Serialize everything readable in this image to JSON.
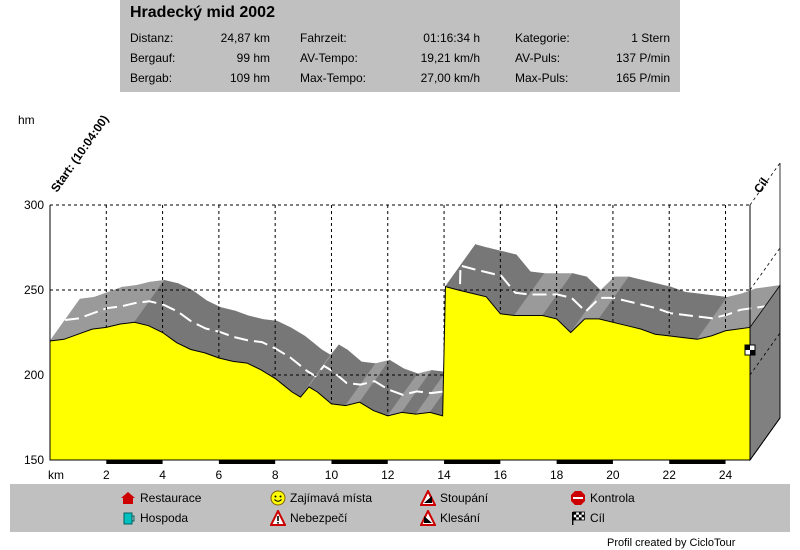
{
  "info": {
    "title": "Hradecký mid 2002",
    "rows": [
      [
        {
          "label": "Distanz:",
          "value": "24,87 km"
        },
        {
          "label": "Fahrzeit:",
          "value": "01:16:34 h"
        },
        {
          "label": "Kategorie:",
          "value": "1 Stern"
        }
      ],
      [
        {
          "label": "Bergauf:",
          "value": "99 hm"
        },
        {
          "label": "AV-Tempo:",
          "value": "19,21 km/h"
        },
        {
          "label": "AV-Puls:",
          "value": "137 P/min"
        }
      ],
      [
        {
          "label": "Bergab:",
          "value": "109 hm"
        },
        {
          "label": "Max-Tempo:",
          "value": "27,00 km/h"
        },
        {
          "label": "Max-Puls:",
          "value": "165 P/min"
        }
      ]
    ]
  },
  "chart_data": {
    "type": "area",
    "xlabel": "km",
    "ylabel": "hm",
    "xlim": [
      0,
      24.87
    ],
    "ylim": [
      150,
      300
    ],
    "grid": true,
    "x_ticks": [
      2,
      4,
      6,
      8,
      10,
      12,
      14,
      16,
      18,
      20,
      22,
      24
    ],
    "y_ticks": [
      150,
      200,
      250,
      300
    ],
    "start_label": "Start: (10:04:00)",
    "end_label": "Cíl",
    "fill_color": "#ffff00",
    "x": [
      0,
      0.5,
      1.0,
      1.5,
      2.0,
      2.5,
      3.0,
      3.5,
      4.0,
      4.5,
      5.0,
      5.5,
      6.0,
      6.5,
      7.0,
      7.5,
      8.0,
      8.3,
      8.6,
      8.9,
      9.2,
      9.5,
      10.0,
      10.5,
      11.0,
      11.5,
      12.0,
      12.5,
      13.0,
      13.5,
      13.95,
      14.05,
      14.5,
      15.0,
      15.5,
      16.0,
      16.5,
      17.0,
      17.5,
      18.0,
      18.5,
      19.0,
      19.5,
      20.0,
      20.5,
      21.0,
      21.5,
      22.0,
      22.5,
      23.0,
      23.5,
      24.0,
      24.87
    ],
    "y": [
      220,
      221,
      224,
      227,
      228,
      230,
      231,
      229,
      225,
      219,
      215,
      213,
      210,
      208,
      207,
      203,
      198,
      194,
      190,
      187,
      193,
      190,
      183,
      182,
      184,
      179,
      176,
      178,
      177,
      178,
      176,
      252,
      250,
      248,
      246,
      236,
      235,
      235,
      235,
      233,
      225,
      233,
      233,
      231,
      229,
      227,
      224,
      223,
      222,
      221,
      223,
      226,
      228
    ]
  },
  "legend": {
    "items": [
      {
        "icon": "restaurant-icon",
        "label": "Restaurace"
      },
      {
        "icon": "pub-icon",
        "label": "Hospoda"
      },
      {
        "icon": "smiley-icon",
        "label": "Zajímavá místa"
      },
      {
        "icon": "danger-icon",
        "label": "Nebezpečí"
      },
      {
        "icon": "climb-icon",
        "label": "Stoupání"
      },
      {
        "icon": "descent-icon",
        "label": "Klesání"
      },
      {
        "icon": "stop-icon",
        "label": "Kontrola"
      },
      {
        "icon": "finish-flag-icon",
        "label": "Cíl"
      }
    ]
  },
  "credit": "Profil created by CicloTour",
  "colors": {
    "panel": "#c0c0c0",
    "fill": "#ffff00",
    "wall": "#808080",
    "top": "#a0a0a0"
  }
}
